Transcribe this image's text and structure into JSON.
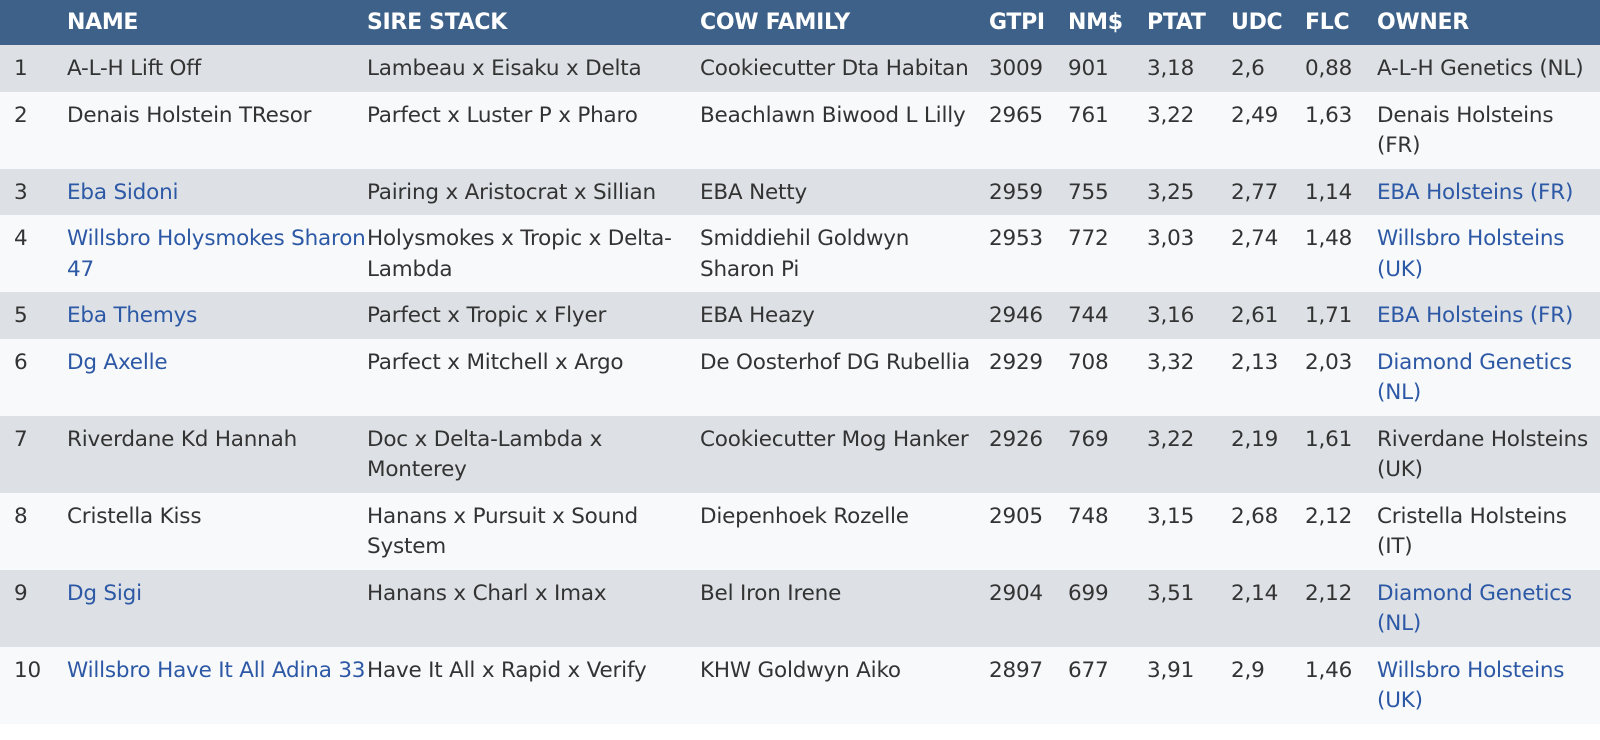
{
  "headers": [
    "",
    "NAME",
    "SIRE STACK",
    "COW FAMILY",
    "GTPI",
    "NM$",
    "PTAT",
    "UDC",
    "FLC",
    "OWNER"
  ],
  "colors": {
    "header_bg": "#3d6188",
    "row_odd_bg": "#dde1e5",
    "row_even_bg": "#f8f9fa",
    "link": "#2c58a5",
    "text": "#333333"
  },
  "rows": [
    {
      "rank": "1",
      "name": "A-L-H Lift Off",
      "name_link": false,
      "sire": "Lambeau x Eisaku x Delta",
      "cow_family": "Cookiecutter Dta Habitan",
      "gtpi": "3009",
      "nm": "901",
      "ptat": "3,18",
      "udc": "2,6",
      "flc": "0,88",
      "owner": "A-L-H Genetics (NL)",
      "owner_link": false
    },
    {
      "rank": "2",
      "name": "Denais Holstein TResor",
      "name_link": false,
      "sire": "Parfect x Luster P x Pharo",
      "cow_family": "Beachlawn Biwood L Lilly",
      "gtpi": "2965",
      "nm": "761",
      "ptat": "3,22",
      "udc": "2,49",
      "flc": "1,63",
      "owner": "Denais Holsteins (FR)",
      "owner_link": false
    },
    {
      "rank": "3",
      "name": "Eba Sidoni",
      "name_link": true,
      "sire": "Pairing x Aristocrat x Sillian",
      "cow_family": "EBA Netty",
      "gtpi": "2959",
      "nm": "755",
      "ptat": "3,25",
      "udc": "2,77",
      "flc": "1,14",
      "owner": "EBA Holsteins (FR)",
      "owner_link": true
    },
    {
      "rank": "4",
      "name": "Willsbro Holysmokes Sharon 47",
      "name_link": true,
      "sire": "Holysmokes x Tropic x Delta-Lambda",
      "cow_family": "Smiddiehil Goldwyn Sharon Pi",
      "gtpi": "2953",
      "nm": "772",
      "ptat": "3,03",
      "udc": "2,74",
      "flc": "1,48",
      "owner": "Willsbro Holsteins (UK)",
      "owner_link": true
    },
    {
      "rank": "5",
      "name": "Eba Themys",
      "name_link": true,
      "sire": "Parfect x Tropic x Flyer",
      "cow_family": "EBA Heazy",
      "gtpi": "2946",
      "nm": "744",
      "ptat": "3,16",
      "udc": "2,61",
      "flc": "1,71",
      "owner": "EBA Holsteins (FR)",
      "owner_link": true
    },
    {
      "rank": "6",
      "name": "Dg Axelle",
      "name_link": true,
      "sire": "Parfect x Mitchell x Argo",
      "cow_family": "De Oosterhof DG Rubellia",
      "gtpi": "2929",
      "nm": "708",
      "ptat": "3,32",
      "udc": "2,13",
      "flc": "2,03",
      "owner": "Diamond Genetics (NL)",
      "owner_link": true
    },
    {
      "rank": "7",
      "name": "Riverdane Kd Hannah",
      "name_link": false,
      "sire": "Doc x Delta-Lambda x Monterey",
      "cow_family": "Cookiecutter Mog Hanker",
      "gtpi": "2926",
      "nm": "769",
      "ptat": "3,22",
      "udc": "2,19",
      "flc": "1,61",
      "owner": "Riverdane Holsteins (UK)",
      "owner_link": false
    },
    {
      "rank": "8",
      "name": "Cristella Kiss",
      "name_link": false,
      "sire": "Hanans x Pursuit x Sound System",
      "cow_family": "Diepenhoek Rozelle",
      "gtpi": "2905",
      "nm": "748",
      "ptat": "3,15",
      "udc": "2,68",
      "flc": "2,12",
      "owner": "Cristella Holsteins (IT)",
      "owner_link": false
    },
    {
      "rank": "9",
      "name": "Dg Sigi",
      "name_link": true,
      "sire": "Hanans x Charl x Imax",
      "cow_family": "Bel Iron Irene",
      "gtpi": "2904",
      "nm": "699",
      "ptat": "3,51",
      "udc": "2,14",
      "flc": "2,12",
      "owner": "Diamond Genetics (NL)",
      "owner_link": true
    },
    {
      "rank": "10",
      "name": "Willsbro Have It All Adina 33",
      "name_link": true,
      "sire": "Have It All x Rapid x Verify",
      "cow_family": "KHW Goldwyn Aiko",
      "gtpi": "2897",
      "nm": "677",
      "ptat": "3,91",
      "udc": "2,9",
      "flc": "1,46",
      "owner": "Willsbro Holsteins (UK)",
      "owner_link": true
    }
  ]
}
